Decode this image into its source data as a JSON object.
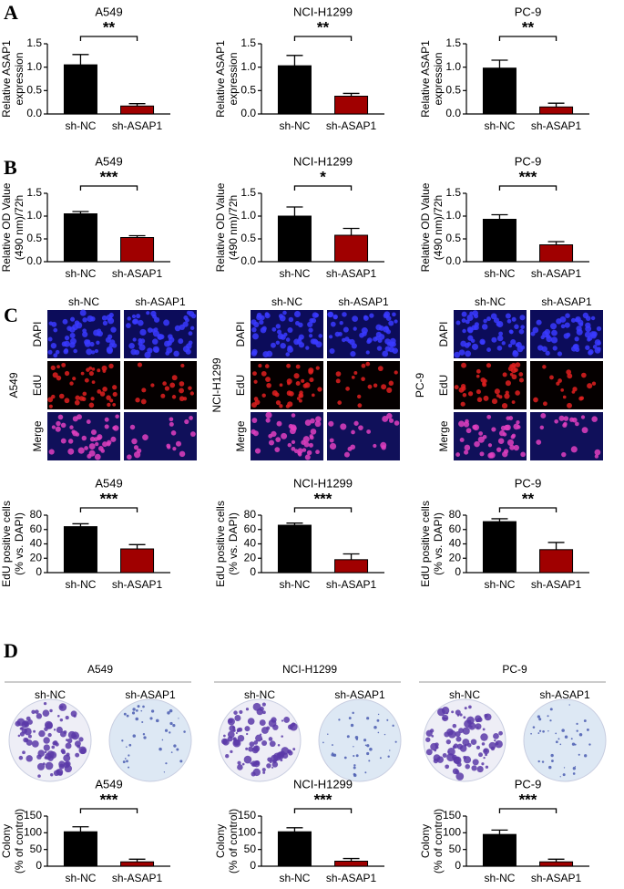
{
  "figure": {
    "panels": [
      "A",
      "B",
      "C",
      "D"
    ]
  },
  "edu_panels": [
    {
      "cell_line": "A549",
      "conditions": [
        "sh-NC",
        "sh-ASAP1"
      ],
      "channels": [
        "DAPI",
        "EdU",
        "Merge"
      ]
    },
    {
      "cell_line": "NCI-H1299",
      "conditions": [
        "sh-NC",
        "sh-ASAP1"
      ],
      "channels": [
        "DAPI",
        "EdU",
        "Merge"
      ]
    },
    {
      "cell_line": "PC-9",
      "conditions": [
        "sh-NC",
        "sh-ASAP1"
      ],
      "channels": [
        "DAPI",
        "EdU",
        "Merge"
      ]
    }
  ],
  "colony_panels": [
    {
      "cell_line": "A549",
      "conditions": [
        "sh-NC",
        "sh-ASAP1"
      ]
    },
    {
      "cell_line": "NCI-H1299",
      "conditions": [
        "sh-NC",
        "sh-ASAP1"
      ]
    },
    {
      "cell_line": "PC-9",
      "conditions": [
        "sh-NC",
        "sh-ASAP1"
      ]
    }
  ],
  "chart_data": [
    {
      "type": "bar",
      "title": "A549",
      "ylabel": [
        "Relative ASAP1",
        "expression"
      ],
      "categories": [
        "sh-NC",
        "sh-ASAP1"
      ],
      "values": [
        1.05,
        0.17
      ],
      "errors": [
        0.22,
        0.05
      ],
      "colors": [
        "#000000",
        "#a00000"
      ],
      "ylim": [
        0,
        1.5
      ],
      "yticks": [
        {
          "value": 0,
          "label": "0.0"
        },
        {
          "value": 0.5,
          "label": "0.5"
        },
        {
          "value": 1,
          "label": "1.0"
        },
        {
          "value": 1.5,
          "label": "1.5"
        }
      ],
      "significance": "**"
    },
    {
      "type": "bar",
      "title": "NCI-H1299",
      "ylabel": [
        "Relative ASAP1",
        "expression"
      ],
      "categories": [
        "sh-NC",
        "sh-ASAP1"
      ],
      "values": [
        1.03,
        0.38
      ],
      "errors": [
        0.22,
        0.06
      ],
      "colors": [
        "#000000",
        "#a00000"
      ],
      "ylim": [
        0,
        1.5
      ],
      "yticks": [
        {
          "value": 0,
          "label": "0.0"
        },
        {
          "value": 0.5,
          "label": "0.5"
        },
        {
          "value": 1,
          "label": "1.0"
        },
        {
          "value": 1.5,
          "label": "1.5"
        }
      ],
      "significance": "**"
    },
    {
      "type": "bar",
      "title": "PC-9",
      "ylabel": [
        "Relative ASAP1",
        "expression"
      ],
      "categories": [
        "sh-NC",
        "sh-ASAP1"
      ],
      "values": [
        0.98,
        0.15
      ],
      "errors": [
        0.17,
        0.08
      ],
      "colors": [
        "#000000",
        "#a00000"
      ],
      "ylim": [
        0,
        1.5
      ],
      "yticks": [
        {
          "value": 0,
          "label": "0.0"
        },
        {
          "value": 0.5,
          "label": "0.5"
        },
        {
          "value": 1,
          "label": "1.0"
        },
        {
          "value": 1.5,
          "label": "1.5"
        }
      ],
      "significance": "**"
    },
    {
      "type": "bar",
      "title": "A549",
      "ylabel": [
        "Relative OD Value",
        "(490 nm)/72h"
      ],
      "categories": [
        "sh-NC",
        "sh-ASAP1"
      ],
      "values": [
        1.05,
        0.53
      ],
      "errors": [
        0.05,
        0.04
      ],
      "colors": [
        "#000000",
        "#a00000"
      ],
      "ylim": [
        0,
        1.5
      ],
      "yticks": [
        {
          "value": 0,
          "label": "0.0"
        },
        {
          "value": 0.5,
          "label": "0.5"
        },
        {
          "value": 1,
          "label": "1.0"
        },
        {
          "value": 1.5,
          "label": "1.5"
        }
      ],
      "significance": "***"
    },
    {
      "type": "bar",
      "title": "NCI-H1299",
      "ylabel": [
        "Relative OD Value",
        "(490 nm)/72h"
      ],
      "categories": [
        "sh-NC",
        "sh-ASAP1"
      ],
      "values": [
        1.0,
        0.58
      ],
      "errors": [
        0.2,
        0.15
      ],
      "colors": [
        "#000000",
        "#a00000"
      ],
      "ylim": [
        0,
        1.5
      ],
      "yticks": [
        {
          "value": 0,
          "label": "0.0"
        },
        {
          "value": 0.5,
          "label": "0.5"
        },
        {
          "value": 1,
          "label": "1.0"
        },
        {
          "value": 1.5,
          "label": "1.5"
        }
      ],
      "significance": "*"
    },
    {
      "type": "bar",
      "title": "PC-9",
      "ylabel": [
        "Relative OD Value",
        "(490 nm)/72h"
      ],
      "categories": [
        "sh-NC",
        "sh-ASAP1"
      ],
      "values": [
        0.93,
        0.37
      ],
      "errors": [
        0.1,
        0.07
      ],
      "colors": [
        "#000000",
        "#a00000"
      ],
      "ylim": [
        0,
        1.5
      ],
      "yticks": [
        {
          "value": 0,
          "label": "0.0"
        },
        {
          "value": 0.5,
          "label": "0.5"
        },
        {
          "value": 1,
          "label": "1.0"
        },
        {
          "value": 1.5,
          "label": "1.5"
        }
      ],
      "significance": "***"
    },
    {
      "type": "bar",
      "title": "A549",
      "ylabel": [
        "EdU positive cells",
        "(% vs. DAPI)"
      ],
      "categories": [
        "sh-NC",
        "sh-ASAP1"
      ],
      "values": [
        64,
        33
      ],
      "errors": [
        4,
        6
      ],
      "colors": [
        "#000000",
        "#a00000"
      ],
      "ylim": [
        0,
        80
      ],
      "yticks": [
        0,
        20,
        40,
        60,
        80
      ],
      "significance": "***"
    },
    {
      "type": "bar",
      "title": "NCI-H1299",
      "ylabel": [
        "EdU positive cells",
        "(% vs. DAPI)"
      ],
      "categories": [
        "sh-NC",
        "sh-ASAP1"
      ],
      "values": [
        66,
        18
      ],
      "errors": [
        3,
        8
      ],
      "colors": [
        "#000000",
        "#a00000"
      ],
      "ylim": [
        0,
        80
      ],
      "yticks": [
        0,
        20,
        40,
        60,
        80
      ],
      "significance": "***"
    },
    {
      "type": "bar",
      "title": "PC-9",
      "ylabel": [
        "EdU positive cells",
        "(% vs. DAPI)"
      ],
      "categories": [
        "sh-NC",
        "sh-ASAP1"
      ],
      "values": [
        71,
        32
      ],
      "errors": [
        4,
        10
      ],
      "colors": [
        "#000000",
        "#a00000"
      ],
      "ylim": [
        0,
        80
      ],
      "yticks": [
        0,
        20,
        40,
        60,
        80
      ],
      "significance": "**"
    },
    {
      "type": "bar",
      "title": "A549",
      "ylabel": [
        "Colony",
        "(% of control)"
      ],
      "categories": [
        "sh-NC",
        "sh-ASAP1"
      ],
      "values": [
        103,
        13
      ],
      "errors": [
        15,
        8
      ],
      "colors": [
        "#000000",
        "#a00000"
      ],
      "ylim": [
        0,
        150
      ],
      "yticks": [
        0,
        50,
        100,
        150
      ],
      "significance": "***"
    },
    {
      "type": "bar",
      "title": "NCI-H1299",
      "ylabel": [
        "Colony",
        "(% of control)"
      ],
      "categories": [
        "sh-NC",
        "sh-ASAP1"
      ],
      "values": [
        103,
        15
      ],
      "errors": [
        12,
        8
      ],
      "colors": [
        "#000000",
        "#a00000"
      ],
      "ylim": [
        0,
        150
      ],
      "yticks": [
        0,
        50,
        100,
        150
      ],
      "significance": "***"
    },
    {
      "type": "bar",
      "title": "PC-9",
      "ylabel": [
        "Colony",
        "(% of control)"
      ],
      "categories": [
        "sh-NC",
        "sh-ASAP1"
      ],
      "values": [
        95,
        13
      ],
      "errors": [
        13,
        8
      ],
      "colors": [
        "#000000",
        "#a00000"
      ],
      "ylim": [
        0,
        150
      ],
      "yticks": [
        0,
        50,
        100,
        150
      ],
      "significance": "***"
    }
  ]
}
